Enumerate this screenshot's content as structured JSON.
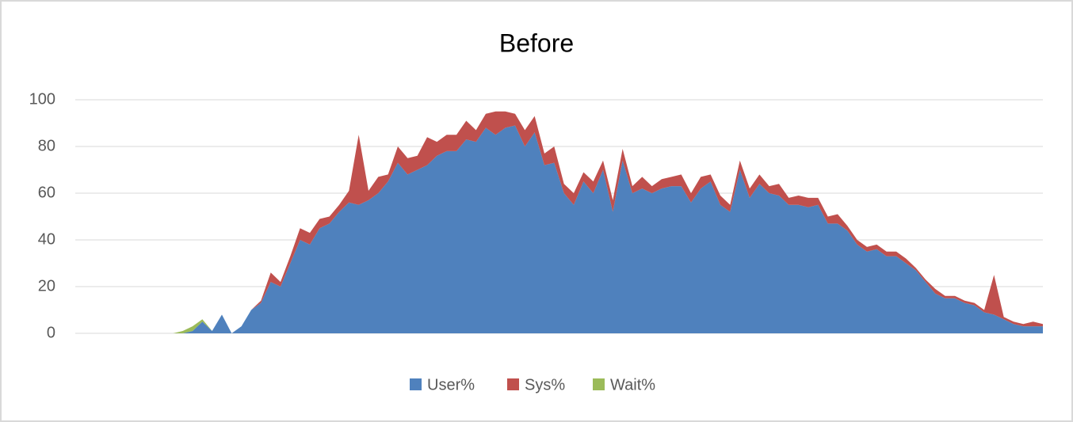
{
  "chart_data": {
    "type": "stacked_area",
    "title": "Before",
    "categories": [
      null,
      null,
      null,
      null,
      null,
      null,
      null,
      null,
      null,
      null,
      null,
      null,
      null,
      null,
      null,
      null,
      null,
      null,
      null,
      null,
      null,
      null,
      null,
      null,
      null,
      null,
      null,
      null,
      null,
      null,
      null,
      null,
      null,
      null,
      null,
      null,
      null,
      null,
      null,
      null,
      null,
      null,
      null,
      null,
      null,
      null,
      null,
      null,
      null,
      null,
      null,
      null,
      null,
      null,
      null,
      null,
      null,
      null,
      null,
      null,
      null,
      null,
      null,
      null,
      null,
      null,
      null,
      null,
      null,
      null,
      null,
      null,
      null,
      null,
      null,
      null,
      null,
      null,
      null,
      null,
      null,
      null,
      null,
      null,
      null,
      null,
      null,
      null,
      null,
      null,
      null,
      null,
      null,
      null,
      null,
      null,
      null,
      null,
      null,
      null
    ],
    "series": [
      {
        "name": "User%",
        "color": "#4f81bd",
        "values": [
          0,
          0,
          0,
          0,
          0,
          0,
          0,
          0,
          0,
          0,
          0,
          0,
          1,
          5,
          1,
          8,
          0,
          3,
          10,
          13,
          22,
          20,
          30,
          40,
          38,
          45,
          47,
          52,
          56,
          55,
          57,
          60,
          65,
          73,
          68,
          70,
          72,
          76,
          78,
          78,
          83,
          82,
          88,
          85,
          88,
          89,
          80,
          86,
          72,
          73,
          60,
          55,
          65,
          60,
          70,
          52,
          74,
          60,
          62,
          60,
          62,
          63,
          63,
          56,
          62,
          65,
          55,
          52,
          70,
          58,
          64,
          60,
          59,
          55,
          55,
          54,
          55,
          47,
          47,
          44,
          38,
          35,
          36,
          33,
          33,
          30,
          27,
          22,
          17,
          15,
          15,
          13,
          12,
          9,
          8,
          6,
          4,
          3,
          3,
          3
        ]
      },
      {
        "name": "Sys%",
        "color": "#c0504d",
        "values": [
          0,
          0,
          0,
          0,
          0,
          0,
          0,
          0,
          0,
          0,
          0,
          0,
          0,
          0,
          0,
          0,
          0,
          0,
          0,
          1,
          4,
          2,
          3,
          5,
          5,
          4,
          3,
          3,
          5,
          30,
          4,
          7,
          3,
          7,
          7,
          6,
          12,
          6,
          7,
          7,
          8,
          5,
          6,
          10,
          7,
          5,
          7,
          7,
          5,
          7,
          4,
          5,
          4,
          5,
          4,
          5,
          5,
          3,
          5,
          3,
          4,
          4,
          5,
          4,
          5,
          3,
          4,
          3,
          4,
          4,
          4,
          3,
          5,
          3,
          4,
          4,
          3,
          3,
          4,
          2,
          2,
          2,
          2,
          2,
          2,
          2,
          1,
          1,
          2,
          1,
          1,
          1,
          1,
          1,
          17,
          1,
          1,
          1,
          2,
          1
        ]
      },
      {
        "name": "Wait%",
        "color": "#9bbb59",
        "values": [
          0,
          0,
          0,
          0,
          0,
          0,
          0,
          0,
          0,
          0,
          0,
          1,
          2,
          1,
          0,
          0,
          0,
          0,
          0,
          0,
          0,
          0,
          0,
          0,
          0,
          0,
          0,
          0,
          0,
          0,
          0,
          0,
          0,
          0,
          0,
          0,
          0,
          0,
          0,
          0,
          0,
          0,
          0,
          0,
          0,
          0,
          0,
          0,
          0,
          0,
          0,
          0,
          0,
          0,
          0,
          0,
          0,
          0,
          0,
          0,
          0,
          0,
          0,
          0,
          0,
          0,
          0,
          0,
          0,
          0,
          0,
          0,
          0,
          0,
          0,
          0,
          0,
          0,
          0,
          0,
          0,
          0,
          0,
          0,
          0,
          0,
          0,
          0,
          0,
          0,
          0,
          0,
          0,
          0,
          0,
          0,
          0,
          0,
          0,
          0
        ]
      }
    ],
    "ylim": [
      0,
      100
    ],
    "yticks": [
      0,
      20,
      40,
      60,
      80,
      100
    ],
    "grid": true,
    "legend": "bottom"
  }
}
